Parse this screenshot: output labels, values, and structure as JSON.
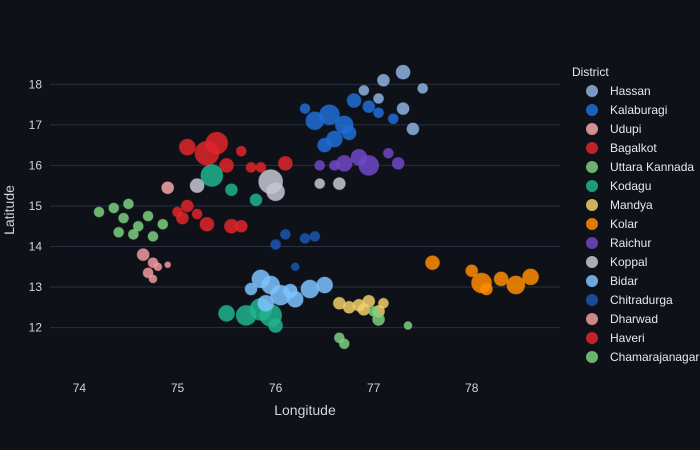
{
  "chart_data": {
    "type": "scatter",
    "xlabel": "Longitude",
    "ylabel": "Latitude",
    "xlim": [
      73.7,
      78.9
    ],
    "ylim": [
      11.2,
      18.6
    ],
    "xticks": [
      74,
      75,
      76,
      77,
      78
    ],
    "yticks": [
      12,
      13,
      14,
      15,
      16,
      17,
      18
    ],
    "grid": true,
    "legend": {
      "title": "District",
      "placement": "right"
    },
    "series": [
      {
        "name": "Hassan",
        "color": "#8cb4e0",
        "points": [
          [
            77.3,
            18.3,
            7
          ],
          [
            77.1,
            18.1,
            6
          ],
          [
            77.5,
            17.9,
            5
          ],
          [
            76.9,
            17.85,
            5
          ],
          [
            77.05,
            17.65,
            5
          ],
          [
            77.3,
            17.4,
            6
          ],
          [
            77.4,
            16.9,
            6
          ]
        ]
      },
      {
        "name": "Kalaburagi",
        "color": "#1f6fd6",
        "points": [
          [
            76.4,
            17.1,
            9
          ],
          [
            76.55,
            17.25,
            10
          ],
          [
            76.7,
            17.0,
            9
          ],
          [
            76.8,
            17.6,
            7
          ],
          [
            76.95,
            17.45,
            6
          ],
          [
            76.6,
            16.65,
            8
          ],
          [
            76.5,
            16.5,
            7
          ],
          [
            76.75,
            16.8,
            7
          ],
          [
            77.05,
            17.3,
            5
          ],
          [
            77.2,
            17.15,
            5
          ],
          [
            76.3,
            17.4,
            5
          ]
        ]
      },
      {
        "name": "Udupi",
        "color": "#f3a7a7",
        "points": [
          [
            74.9,
            15.45,
            6
          ]
        ]
      },
      {
        "name": "Bagalkot",
        "color": "#e0262c",
        "points": [
          [
            75.1,
            16.45,
            8
          ],
          [
            75.3,
            16.3,
            12
          ],
          [
            75.4,
            16.55,
            11
          ],
          [
            75.5,
            16.0,
            7
          ],
          [
            75.65,
            16.35,
            5
          ],
          [
            75.75,
            15.95,
            5
          ],
          [
            75.85,
            15.95,
            5
          ],
          [
            76.1,
            16.05,
            7
          ]
        ]
      },
      {
        "name": "Uttara Kannada",
        "color": "#7bd07f",
        "points": [
          [
            74.2,
            14.85,
            5
          ],
          [
            74.35,
            14.95,
            5
          ],
          [
            74.45,
            14.7,
            5
          ],
          [
            74.4,
            14.35,
            5
          ],
          [
            74.55,
            14.3,
            5
          ],
          [
            74.6,
            14.5,
            5
          ],
          [
            74.75,
            14.25,
            5
          ],
          [
            74.85,
            14.55,
            5
          ],
          [
            74.5,
            15.05,
            5
          ],
          [
            74.7,
            14.75,
            5
          ]
        ]
      },
      {
        "name": "Kodagu",
        "color": "#1eb58e",
        "points": [
          [
            75.35,
            15.75,
            11
          ],
          [
            75.55,
            15.4,
            6
          ],
          [
            75.8,
            15.15,
            6
          ],
          [
            75.5,
            12.35,
            8
          ],
          [
            75.7,
            12.3,
            10
          ],
          [
            75.85,
            12.45,
            11
          ],
          [
            75.95,
            12.3,
            11
          ],
          [
            76.0,
            12.05,
            7
          ]
        ]
      },
      {
        "name": "Mandya",
        "color": "#f2cf6a",
        "points": [
          [
            76.65,
            12.6,
            6
          ],
          [
            76.75,
            12.5,
            6
          ],
          [
            76.85,
            12.55,
            6
          ],
          [
            76.95,
            12.65,
            6
          ],
          [
            77.05,
            12.4,
            6
          ],
          [
            76.9,
            12.45,
            6
          ],
          [
            77.1,
            12.6,
            5
          ]
        ]
      },
      {
        "name": "Kolar",
        "color": "#ff8c00",
        "points": [
          [
            77.6,
            13.6,
            7
          ],
          [
            78.0,
            13.4,
            6
          ],
          [
            78.1,
            13.1,
            10
          ],
          [
            78.3,
            13.2,
            7
          ],
          [
            78.45,
            13.05,
            9
          ],
          [
            78.6,
            13.25,
            8
          ],
          [
            78.15,
            12.95,
            6
          ]
        ]
      },
      {
        "name": "Raichur",
        "color": "#7048c8",
        "points": [
          [
            76.7,
            16.05,
            8
          ],
          [
            76.85,
            16.2,
            8
          ],
          [
            76.95,
            16.0,
            10
          ],
          [
            77.15,
            16.3,
            5
          ],
          [
            76.6,
            16.0,
            5
          ],
          [
            76.45,
            16.0,
            5
          ],
          [
            77.25,
            16.05,
            6
          ]
        ]
      },
      {
        "name": "Koppal",
        "color": "#c5c8d2",
        "points": [
          [
            75.95,
            15.6,
            12
          ],
          [
            76.0,
            15.35,
            9
          ],
          [
            76.45,
            15.55,
            5
          ],
          [
            76.65,
            15.55,
            6
          ],
          [
            75.2,
            15.5,
            7
          ]
        ]
      },
      {
        "name": "Bidar",
        "color": "#7cc3ff",
        "points": [
          [
            75.85,
            13.2,
            9
          ],
          [
            75.95,
            13.05,
            9
          ],
          [
            76.05,
            12.8,
            10
          ],
          [
            76.2,
            12.7,
            8
          ],
          [
            76.35,
            12.95,
            9
          ],
          [
            76.5,
            13.05,
            8
          ],
          [
            75.9,
            12.6,
            8
          ],
          [
            75.75,
            12.95,
            6
          ],
          [
            76.15,
            12.9,
            7
          ]
        ]
      },
      {
        "name": "Chitradurga",
        "color": "#1a56b0",
        "points": [
          [
            76.1,
            14.3,
            5
          ],
          [
            76.3,
            14.2,
            5
          ],
          [
            76.0,
            14.05,
            5
          ],
          [
            76.2,
            13.5,
            4
          ],
          [
            76.4,
            14.25,
            5
          ]
        ]
      },
      {
        "name": "Dharwad",
        "color": "#f09aa0",
        "points": [
          [
            74.65,
            13.8,
            6
          ],
          [
            74.75,
            13.6,
            5
          ],
          [
            74.7,
            13.35,
            5
          ],
          [
            74.8,
            13.5,
            4
          ],
          [
            74.9,
            13.55,
            3
          ],
          [
            74.75,
            13.2,
            4
          ]
        ]
      },
      {
        "name": "Haveri",
        "color": "#e0262c",
        "points": [
          [
            75.1,
            15.0,
            6
          ],
          [
            75.05,
            14.7,
            6
          ],
          [
            75.2,
            14.8,
            5
          ],
          [
            75.3,
            14.55,
            7
          ],
          [
            75.55,
            14.5,
            7
          ],
          [
            75.65,
            14.5,
            6
          ],
          [
            75.0,
            14.85,
            5
          ]
        ]
      },
      {
        "name": "Chamarajanagar",
        "color": "#7bd07f",
        "points": [
          [
            76.65,
            11.75,
            5
          ],
          [
            76.7,
            11.6,
            5
          ],
          [
            77.05,
            12.2,
            6
          ],
          [
            77.35,
            12.05,
            4
          ],
          [
            77.0,
            12.4,
            5
          ]
        ]
      }
    ]
  }
}
